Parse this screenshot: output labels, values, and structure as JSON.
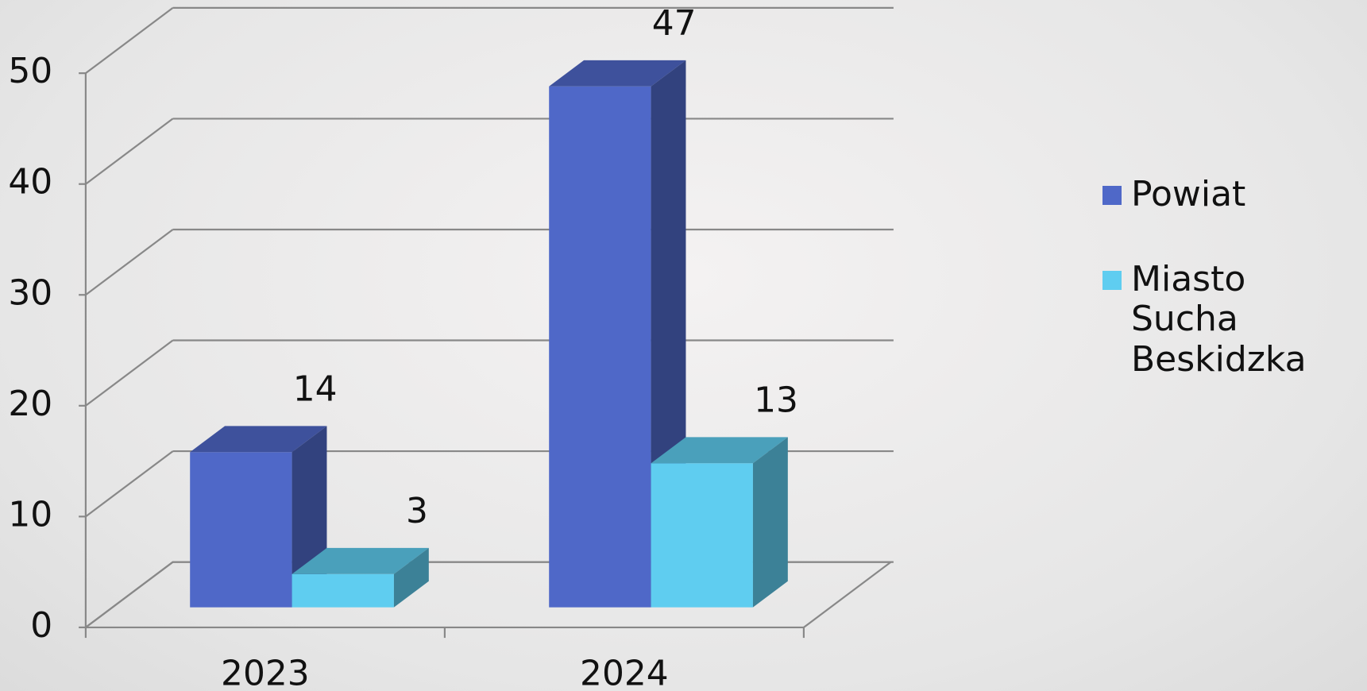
{
  "chart_data": {
    "type": "bar3d",
    "categories": [
      "2023",
      "2024"
    ],
    "series": [
      {
        "name": "Powiat",
        "color": "#4f68c8",
        "values": [
          14,
          47
        ]
      },
      {
        "name": "Miasto Sucha Beskidzka",
        "color": "#5fcdf0",
        "values": [
          3,
          13
        ]
      }
    ],
    "ylim": [
      0,
      50
    ],
    "yticks": [
      0,
      10,
      20,
      30,
      40,
      50
    ],
    "grid": true,
    "legend": "right"
  }
}
